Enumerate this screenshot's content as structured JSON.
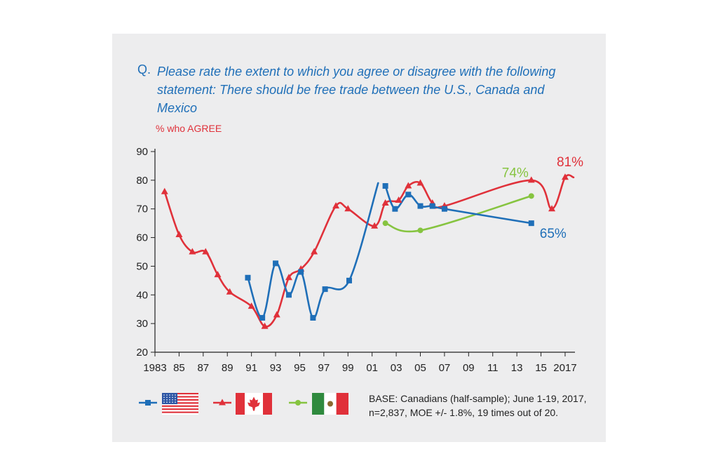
{
  "question": {
    "prefix": "Q.",
    "text": "Please rate the extent to which you agree or disagree with the following statement: There should be free trade between the U.S., Canada and Mexico"
  },
  "subtitle": "% who AGREE",
  "base_note": "BASE: Canadians (half-sample); June 1-19, 2017, n=2,837, MOE +/- 1.8%, 19 times out of 20.",
  "colors": {
    "us": "#1f6fb8",
    "canada": "#e0313a",
    "mexico": "#86c440"
  },
  "chart_data": {
    "type": "line",
    "title": "",
    "xlabel": "",
    "ylabel": "",
    "ylim": [
      20,
      90
    ],
    "xlim": [
      1983,
      2017.7
    ],
    "y_ticks": [
      20,
      30,
      40,
      50,
      60,
      70,
      80,
      90
    ],
    "x_ticks": [
      {
        "value": 1983,
        "label": "1983"
      },
      {
        "value": 1985,
        "label": "85"
      },
      {
        "value": 1987,
        "label": "87"
      },
      {
        "value": 1989,
        "label": "89"
      },
      {
        "value": 1991,
        "label": "91"
      },
      {
        "value": 1993,
        "label": "93"
      },
      {
        "value": 1995,
        "label": "95"
      },
      {
        "value": 1997,
        "label": "97"
      },
      {
        "value": 1999,
        "label": "99"
      },
      {
        "value": 2001,
        "label": "01"
      },
      {
        "value": 2003,
        "label": "03"
      },
      {
        "value": 2005,
        "label": "05"
      },
      {
        "value": 2007,
        "label": "07"
      },
      {
        "value": 2009,
        "label": "09"
      },
      {
        "value": 2011,
        "label": "11"
      },
      {
        "value": 2013,
        "label": "13"
      },
      {
        "value": 2015,
        "label": "15"
      },
      {
        "value": 2017,
        "label": "2017"
      }
    ],
    "grid": false,
    "legend_position": "bottom-left",
    "series": [
      {
        "key": "us",
        "legend": "us-flag",
        "marker": "square",
        "segments": [
          [
            [
              1990.7,
              46
            ],
            [
              1991.9,
              32
            ],
            [
              1993.0,
              51
            ],
            [
              1994.1,
              40
            ],
            [
              1995.1,
              48
            ],
            [
              1996.1,
              32
            ],
            [
              1997.1,
              42
            ],
            [
              1999.1,
              45
            ],
            [
              2001.5,
              79
            ]
          ],
          [
            [
              2002.1,
              78
            ],
            [
              2002.9,
              70
            ],
            [
              2004.0,
              75
            ],
            [
              2005.0,
              71
            ],
            [
              2006.0,
              71
            ],
            [
              2007.0,
              70
            ],
            [
              2014.2,
              65
            ]
          ]
        ],
        "end_label": "65%"
      },
      {
        "key": "canada",
        "legend": "canada-flag",
        "marker": "triangle",
        "segments": [
          [
            [
              1983.8,
              76
            ],
            [
              1985.0,
              61
            ],
            [
              1986.1,
              55
            ],
            [
              1987.2,
              55
            ],
            [
              1988.2,
              47
            ],
            [
              1989.2,
              41
            ],
            [
              1991.0,
              36
            ],
            [
              1992.1,
              29
            ],
            [
              1993.1,
              33
            ],
            [
              1994.1,
              46
            ],
            [
              1995.1,
              49
            ],
            [
              1996.2,
              55
            ],
            [
              1998.0,
              71
            ],
            [
              1999.0,
              70
            ],
            [
              2001.2,
              64
            ],
            [
              2002.1,
              72
            ],
            [
              2003.2,
              73
            ],
            [
              2004.0,
              78
            ],
            [
              2005.0,
              79
            ],
            [
              2006.0,
              72
            ],
            [
              2007.0,
              71
            ],
            [
              2014.2,
              80
            ],
            [
              2015.9,
              70
            ],
            [
              2017.0,
              81
            ],
            [
              2017.7,
              81
            ]
          ]
        ],
        "end_label": "81%"
      },
      {
        "key": "mexico",
        "legend": "mexico-flag",
        "marker": "circle",
        "segments": [
          [
            [
              2002.1,
              65
            ],
            [
              2005.0,
              62.5
            ],
            [
              2014.2,
              74.5
            ]
          ]
        ],
        "end_label": "74%"
      }
    ]
  }
}
